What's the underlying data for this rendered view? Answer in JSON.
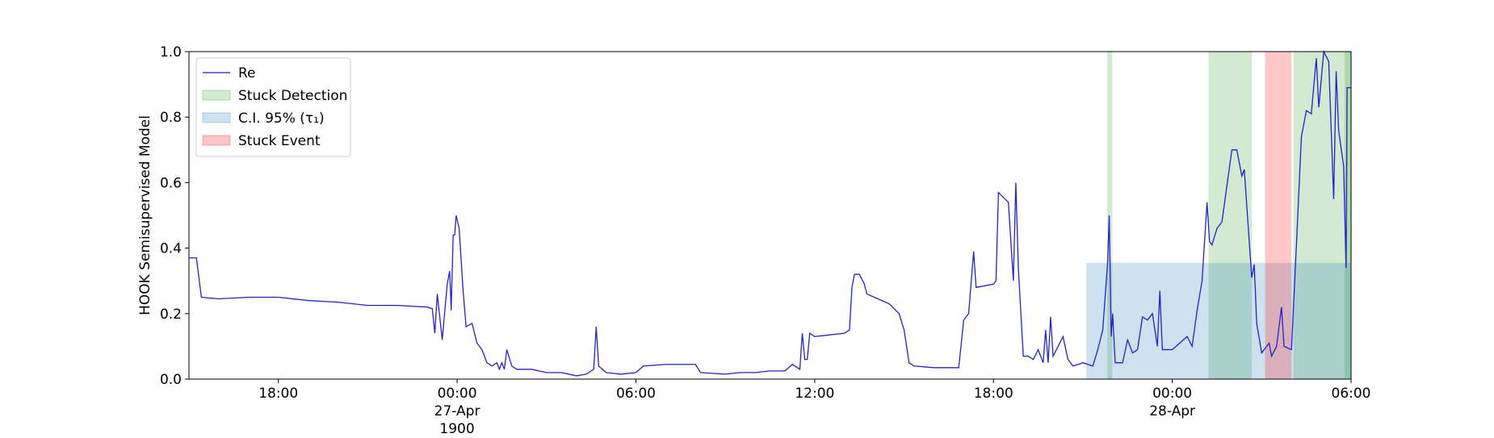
{
  "chart_data": {
    "type": "line",
    "ylabel": "HOOK Semisupervised Model",
    "xlim": [
      "1900-04-26 15:00",
      "1900-04-28 06:00"
    ],
    "xticks": [
      {
        "value": "1900-04-26 18:00",
        "label": "18:00"
      },
      {
        "value": "1900-04-27 00:00",
        "label": "00:00\n27-Apr\n1900"
      },
      {
        "value": "1900-04-27 06:00",
        "label": "06:00"
      },
      {
        "value": "1900-04-27 12:00",
        "label": "12:00"
      },
      {
        "value": "1900-04-27 18:00",
        "label": "18:00"
      },
      {
        "value": "1900-04-28 00:00",
        "label": "00:00\n28-Apr"
      },
      {
        "value": "1900-04-28 06:00",
        "label": "06:00"
      }
    ],
    "ylim": [
      0,
      1
    ],
    "yticks": [
      {
        "value": 0,
        "label": "0.0"
      },
      {
        "value": 0.2,
        "label": "0.2"
      },
      {
        "value": 0.4,
        "label": "0.4"
      },
      {
        "value": 0.6,
        "label": "0.6"
      },
      {
        "value": 0.8,
        "label": "0.8"
      },
      {
        "value": 1,
        "label": "1.0"
      }
    ],
    "legend": "upper left",
    "x": [
      "1900-04-26 15:00",
      "1900-04-26 15:15",
      "1900-04-26 15:25",
      "1900-04-26 16:00",
      "1900-04-26 17:00",
      "1900-04-26 18:00",
      "1900-04-26 19:00",
      "1900-04-26 20:00",
      "1900-04-26 21:00",
      "1900-04-26 22:00",
      "1900-04-26 23:00",
      "1900-04-26 23:10",
      "1900-04-26 23:15",
      "1900-04-26 23:20",
      "1900-04-26 23:30",
      "1900-04-26 23:40",
      "1900-04-26 23:45",
      "1900-04-26 23:48",
      "1900-04-26 23:52",
      "1900-04-26 23:55",
      "1900-04-26 23:58",
      "1900-04-27 00:04",
      "1900-04-27 00:12",
      "1900-04-27 00:18",
      "1900-04-27 00:30",
      "1900-04-27 00:40",
      "1900-04-27 00:50",
      "1900-04-27 01:00",
      "1900-04-27 01:10",
      "1900-04-27 01:20",
      "1900-04-27 01:25",
      "1900-04-27 01:30",
      "1900-04-27 01:35",
      "1900-04-27 01:40",
      "1900-04-27 01:50",
      "1900-04-27 02:00",
      "1900-04-27 02:30",
      "1900-04-27 03:00",
      "1900-04-27 03:30",
      "1900-04-27 04:00",
      "1900-04-27 04:20",
      "1900-04-27 04:35",
      "1900-04-27 04:40",
      "1900-04-27 04:45",
      "1900-04-27 05:00",
      "1900-04-27 05:30",
      "1900-04-27 06:00",
      "1900-04-27 06:15",
      "1900-04-27 07:00",
      "1900-04-27 08:00",
      "1900-04-27 08:10",
      "1900-04-27 09:00",
      "1900-04-27 09:30",
      "1900-04-27 10:00",
      "1900-04-27 10:30",
      "1900-04-27 11:00",
      "1900-04-27 11:15",
      "1900-04-27 11:30",
      "1900-04-27 11:35",
      "1900-04-27 11:40",
      "1900-04-27 11:45",
      "1900-04-27 11:50",
      "1900-04-27 12:00",
      "1900-04-27 13:00",
      "1900-04-27 13:10",
      "1900-04-27 13:15",
      "1900-04-27 13:20",
      "1900-04-27 13:30",
      "1900-04-27 13:40",
      "1900-04-27 13:45",
      "1900-04-27 14:00",
      "1900-04-27 14:30",
      "1900-04-27 14:50",
      "1900-04-27 15:00",
      "1900-04-27 15:10",
      "1900-04-27 15:20",
      "1900-04-27 16:00",
      "1900-04-27 16:50",
      "1900-04-27 17:00",
      "1900-04-27 17:10",
      "1900-04-27 17:20",
      "1900-04-27 17:25",
      "1900-04-27 18:00",
      "1900-04-27 18:05",
      "1900-04-27 18:10",
      "1900-04-27 18:30",
      "1900-04-27 18:40",
      "1900-04-27 18:45",
      "1900-04-27 18:50",
      "1900-04-27 19:00",
      "1900-04-27 19:10",
      "1900-04-27 19:20",
      "1900-04-27 19:30",
      "1900-04-27 19:40",
      "1900-04-27 19:45",
      "1900-04-27 19:50",
      "1900-04-27 19:55",
      "1900-04-27 20:00",
      "1900-04-27 20:10",
      "1900-04-27 20:20",
      "1900-04-27 20:30",
      "1900-04-27 20:40",
      "1900-04-27 21:00",
      "1900-04-27 21:20",
      "1900-04-27 21:30",
      "1900-04-27 21:40",
      "1900-04-27 21:50",
      "1900-04-27 21:53",
      "1900-04-27 21:57",
      "1900-04-27 22:00",
      "1900-04-27 22:05",
      "1900-04-27 22:20",
      "1900-04-27 22:30",
      "1900-04-27 22:40",
      "1900-04-27 22:50",
      "1900-04-27 23:00",
      "1900-04-27 23:10",
      "1900-04-27 23:20",
      "1900-04-27 23:30",
      "1900-04-27 23:35",
      "1900-04-27 23:40",
      "1900-04-27 23:50",
      "1900-04-28 00:00",
      "1900-04-28 00:30",
      "1900-04-28 00:40",
      "1900-04-28 00:50",
      "1900-04-28 01:00",
      "1900-04-28 01:10",
      "1900-04-28 01:15",
      "1900-04-28 01:20",
      "1900-04-28 01:30",
      "1900-04-28 01:40",
      "1900-04-28 02:00",
      "1900-04-28 02:10",
      "1900-04-28 02:20",
      "1900-04-28 02:25",
      "1900-04-28 02:40",
      "1900-04-28 02:45",
      "1900-04-28 02:50",
      "1900-04-28 03:00",
      "1900-04-28 03:15",
      "1900-04-28 03:20",
      "1900-04-28 03:30",
      "1900-04-28 03:40",
      "1900-04-28 03:45",
      "1900-04-28 04:00",
      "1900-04-28 04:10",
      "1900-04-28 04:20",
      "1900-04-28 04:30",
      "1900-04-28 04:40",
      "1900-04-28 04:50",
      "1900-04-28 04:55",
      "1900-04-28 05:05",
      "1900-04-28 05:15",
      "1900-04-28 05:25",
      "1900-04-28 05:30",
      "1900-04-28 05:35",
      "1900-04-28 05:45",
      "1900-04-28 05:50",
      "1900-04-28 05:52",
      "1900-04-28 06:00"
    ],
    "series": [
      {
        "name": "Re",
        "color": "#2222cc",
        "values": [
          0.37,
          0.37,
          0.25,
          0.245,
          0.25,
          0.25,
          0.24,
          0.235,
          0.225,
          0.225,
          0.22,
          0.215,
          0.14,
          0.26,
          0.12,
          0.29,
          0.33,
          0.21,
          0.44,
          0.44,
          0.5,
          0.46,
          0.27,
          0.16,
          0.17,
          0.11,
          0.09,
          0.05,
          0.04,
          0.05,
          0.03,
          0.05,
          0.03,
          0.09,
          0.04,
          0.03,
          0.03,
          0.02,
          0.02,
          0.01,
          0.015,
          0.03,
          0.16,
          0.04,
          0.02,
          0.015,
          0.02,
          0.04,
          0.045,
          0.045,
          0.02,
          0.015,
          0.02,
          0.02,
          0.025,
          0.025,
          0.045,
          0.03,
          0.14,
          0.06,
          0.06,
          0.14,
          0.13,
          0.14,
          0.15,
          0.28,
          0.32,
          0.32,
          0.29,
          0.26,
          0.25,
          0.23,
          0.2,
          0.15,
          0.05,
          0.04,
          0.035,
          0.035,
          0.18,
          0.2,
          0.39,
          0.28,
          0.29,
          0.3,
          0.57,
          0.54,
          0.3,
          0.6,
          0.34,
          0.07,
          0.07,
          0.06,
          0.09,
          0.05,
          0.15,
          0.05,
          0.19,
          0.07,
          0.1,
          0.13,
          0.06,
          0.04,
          0.05,
          0.04,
          0.09,
          0.15,
          0.36,
          0.5,
          0.13,
          0.2,
          0.05,
          0.05,
          0.12,
          0.08,
          0.09,
          0.19,
          0.18,
          0.2,
          0.1,
          0.27,
          0.09,
          0.09,
          0.09,
          0.13,
          0.1,
          0.21,
          0.3,
          0.54,
          0.42,
          0.41,
          0.46,
          0.48,
          0.7,
          0.7,
          0.62,
          0.64,
          0.31,
          0.35,
          0.17,
          0.08,
          0.11,
          0.07,
          0.1,
          0.22,
          0.1,
          0.09,
          0.41,
          0.74,
          0.82,
          0.81,
          0.98,
          0.83,
          1.0,
          0.97,
          0.55,
          0.94,
          0.76,
          0.65,
          0.34,
          0.89,
          0.89
        ]
      }
    ],
    "spans": [
      {
        "name": "Stuck Detection",
        "color": "#2ca02c",
        "ranges": [
          [
            "1900-04-27 21:49",
            "1900-04-27 21:59"
          ],
          [
            "1900-04-28 01:13",
            "1900-04-28 02:40"
          ],
          [
            "1900-04-28 04:04",
            "1900-04-28 06:00"
          ],
          [
            "1900-04-28 05:47",
            "1900-04-28 06:00"
          ]
        ]
      },
      {
        "name": "C.I. 95% (τ₁)",
        "color": "#1f77b4",
        "ranges": [
          [
            "1900-04-27 21:07",
            "1900-04-28 06:00"
          ]
        ],
        "y": [
          0,
          0.355
        ]
      },
      {
        "name": "Stuck Event",
        "color": "#ff0000",
        "ranges": [
          [
            "1900-04-28 03:07",
            "1900-04-28 04:00"
          ]
        ]
      }
    ]
  }
}
